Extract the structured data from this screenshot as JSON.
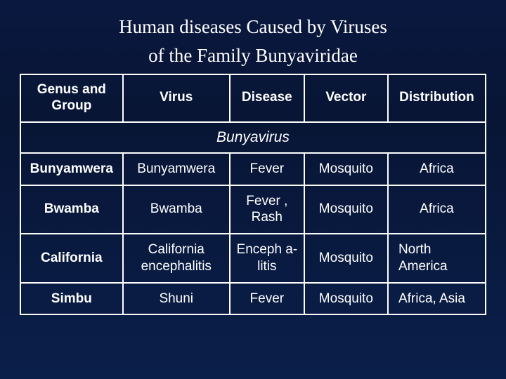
{
  "title_line1": "Human diseases Caused by Viruses",
  "title_line2": "of the Family Bunyaviridae",
  "table": {
    "columns": [
      "Genus and Group",
      "Virus",
      "Disease",
      "Vector",
      "Distribution"
    ],
    "section_label": "Bunyavirus",
    "rows": [
      {
        "genus": "Bunyamwera",
        "virus": "Bunyamwera",
        "disease": "Fever",
        "vector": "Mosquito",
        "distribution": "Africa",
        "dist_align": "center"
      },
      {
        "genus": "Bwamba",
        "virus": "Bwamba",
        "disease": "Fever , Rash",
        "vector": "Mosquito",
        "distribution": "Africa",
        "dist_align": "center"
      },
      {
        "genus": "California",
        "virus": "California encephalitis",
        "disease": "Enceph\na-litis",
        "vector": "Mosquito",
        "distribution": "North America",
        "dist_align": "left"
      },
      {
        "genus": "Simbu",
        "virus": "Shuni",
        "disease": "Fever",
        "vector": "Mosquito",
        "distribution": "Africa, Asia",
        "dist_align": "left"
      }
    ],
    "header_fontsize": 19,
    "cell_fontsize": 19,
    "border_color": "#ffffff",
    "text_color": "#ffffff",
    "background_gradient": [
      "#0a1840",
      "#081535",
      "#0a1f4a"
    ]
  }
}
